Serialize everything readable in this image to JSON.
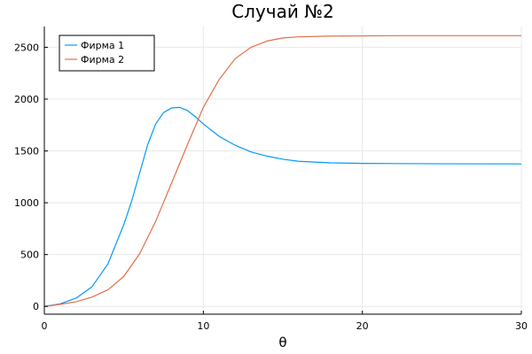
{
  "chart_data": {
    "type": "line",
    "title": "Случай №2",
    "xlabel": "θ",
    "ylabel": "",
    "xlim": [
      0,
      30
    ],
    "ylim": [
      -75,
      2700
    ],
    "xticks": [
      0,
      10,
      20,
      30
    ],
    "yticks": [
      0,
      500,
      1000,
      1500,
      2000,
      2500
    ],
    "grid": true,
    "legend_position": "top-left",
    "series": [
      {
        "name": "Фирма 1",
        "color": "#009AFA",
        "x": [
          0,
          1,
          2,
          3,
          4,
          5,
          5.5,
          6,
          6.5,
          7,
          7.5,
          8,
          8.5,
          9,
          9.5,
          10,
          11,
          12,
          13,
          14,
          15,
          16,
          18,
          20,
          22,
          25,
          30
        ],
        "y": [
          0,
          25,
          80,
          190,
          410,
          790,
          1020,
          1290,
          1560,
          1760,
          1870,
          1915,
          1920,
          1890,
          1830,
          1760,
          1640,
          1555,
          1490,
          1450,
          1420,
          1400,
          1385,
          1380,
          1378,
          1376,
          1375
        ]
      },
      {
        "name": "Фирма 2",
        "color": "#E36F47",
        "x": [
          0,
          1,
          2,
          3,
          4,
          5,
          6,
          7,
          8,
          9,
          10,
          11,
          12,
          13,
          14,
          15,
          16,
          18,
          20,
          22,
          25,
          30
        ],
        "y": [
          0,
          20,
          45,
          90,
          160,
          290,
          510,
          820,
          1190,
          1560,
          1920,
          2190,
          2390,
          2500,
          2560,
          2590,
          2600,
          2608,
          2610,
          2612,
          2612,
          2612
        ]
      }
    ]
  }
}
